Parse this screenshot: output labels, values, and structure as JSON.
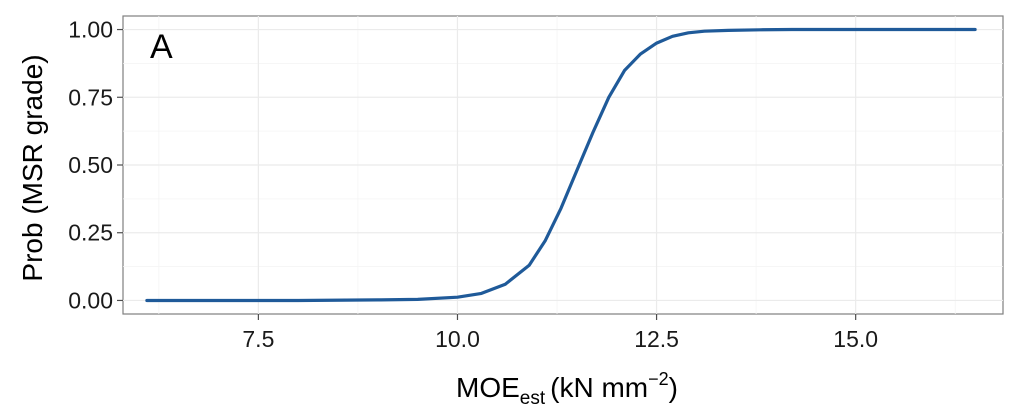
{
  "chart_data": {
    "type": "line",
    "panel_label": "A",
    "xlabel": {
      "main": "MOE",
      "sub": "est",
      "unit": "(kN mm",
      "exp": "−2",
      "close": ")"
    },
    "ylabel": "Prob (MSR grade)",
    "xlim": [
      5.8,
      16.85
    ],
    "ylim": [
      -0.05,
      1.05
    ],
    "x_ticks": [
      7.5,
      10.0,
      12.5,
      15.0
    ],
    "x_tick_labels": [
      "7.5",
      "10.0",
      "12.5",
      "15.0"
    ],
    "y_ticks": [
      0.0,
      0.25,
      0.5,
      0.75,
      1.0
    ],
    "y_tick_labels": [
      "0.00",
      "0.25",
      "0.50",
      "0.75",
      "1.00"
    ],
    "grid": true,
    "series": [
      {
        "color": "#1f5a99",
        "x": [
          6.1,
          7.0,
          8.0,
          9.0,
          9.5,
          10.0,
          10.3,
          10.6,
          10.9,
          11.1,
          11.3,
          11.5,
          11.7,
          11.9,
          12.1,
          12.3,
          12.5,
          12.7,
          12.9,
          13.1,
          13.4,
          13.8,
          14.2,
          15.0,
          16.0,
          16.5
        ],
        "y": [
          0.0,
          0.0,
          0.0,
          0.002,
          0.004,
          0.012,
          0.026,
          0.06,
          0.13,
          0.22,
          0.34,
          0.48,
          0.62,
          0.75,
          0.85,
          0.91,
          0.95,
          0.975,
          0.988,
          0.994,
          0.997,
          0.999,
          1.0,
          1.0,
          1.0,
          1.0
        ]
      }
    ]
  }
}
